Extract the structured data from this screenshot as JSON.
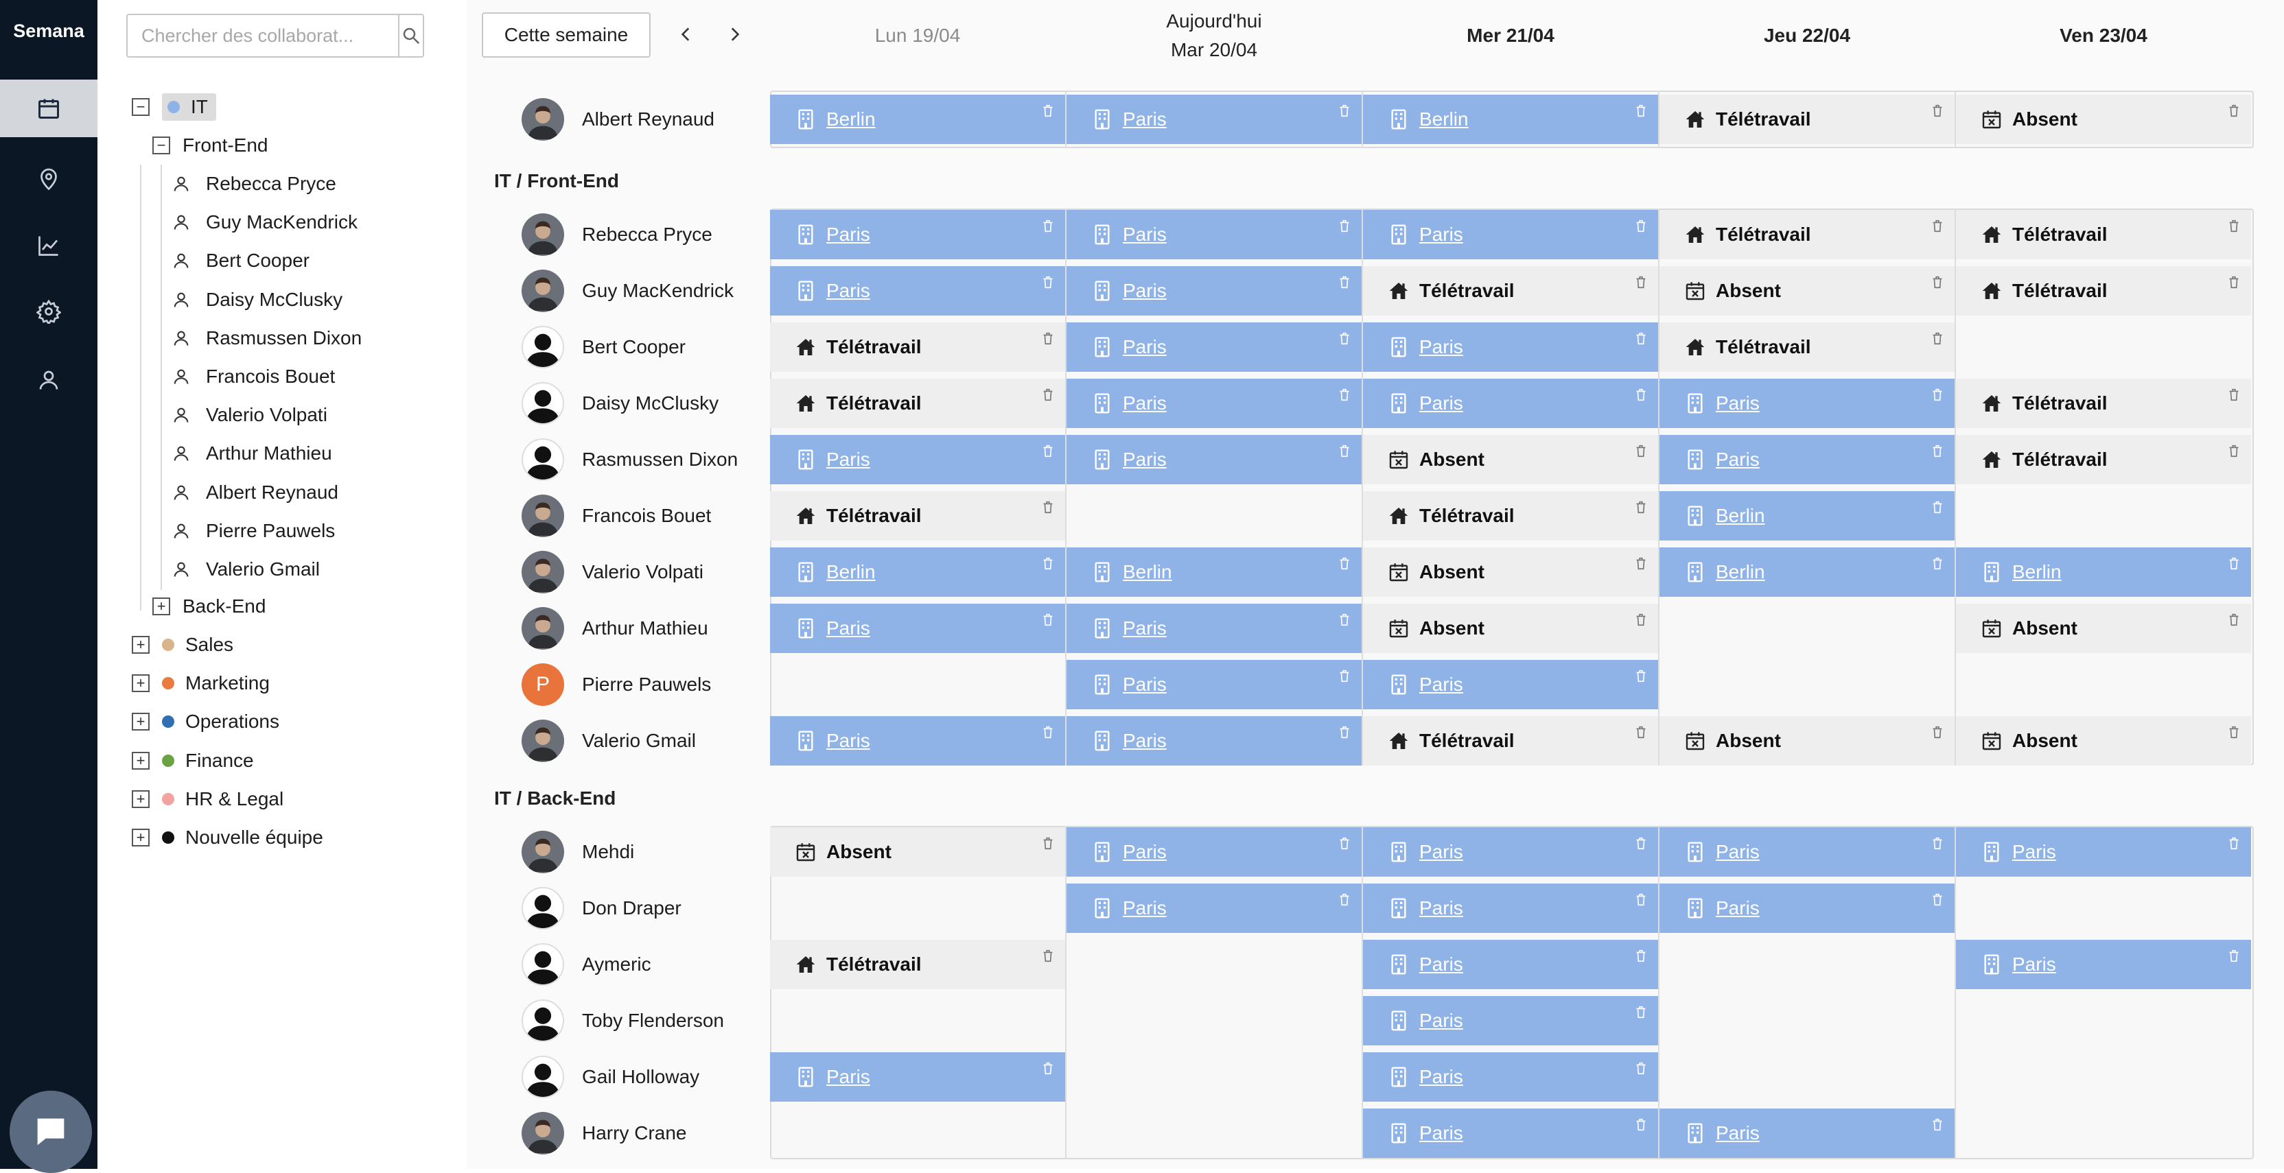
{
  "app": {
    "brand": "Semana"
  },
  "nav": [
    "calendar-icon",
    "map-pin-icon",
    "chart-icon",
    "gear-icon",
    "user-icon"
  ],
  "search": {
    "placeholder": "Chercher des collaborat..."
  },
  "tree": {
    "root": {
      "label": "IT",
      "color": "#8fb3e6"
    },
    "frontend": "Front-End",
    "frontend_members": [
      "Rebecca Pryce",
      "Guy MacKendrick",
      "Bert Cooper",
      "Daisy McClusky",
      "Rasmussen Dixon",
      "Francois Bouet",
      "Valerio Volpati",
      "Arthur Mathieu",
      "Albert Reynaud",
      "Pierre Pauwels",
      "Valerio Gmail"
    ],
    "backend": "Back-End",
    "teams": [
      {
        "label": "Sales",
        "color": "#d9b48a"
      },
      {
        "label": "Marketing",
        "color": "#ea7b3e"
      },
      {
        "label": "Operations",
        "color": "#2f6fb3"
      },
      {
        "label": "Finance",
        "color": "#6aa442"
      },
      {
        "label": "HR & Legal",
        "color": "#f2a3a0"
      },
      {
        "label": "Nouvelle équipe",
        "color": "#111111"
      }
    ]
  },
  "toolbar": {
    "this_week": "Cette semaine"
  },
  "days": [
    {
      "label": "Lun 19/04",
      "state": "past"
    },
    {
      "label": "Aujourd'hui",
      "sub": "Mar 20/04",
      "state": "today"
    },
    {
      "label": "Mer 21/04",
      "state": "future"
    },
    {
      "label": "Jeu 22/04",
      "state": "future"
    },
    {
      "label": "Ven 23/04",
      "state": "future"
    }
  ],
  "colors": {
    "office": "#8fb3e6",
    "remote": "#eeeeee",
    "rail": "#0c1726"
  },
  "groups": [
    {
      "title": "",
      "rows": [
        {
          "name": "Albert Reynaud",
          "avatar": "photo",
          "cells": [
            [
              "office",
              "Berlin"
            ],
            [
              "office",
              "Paris"
            ],
            [
              "office",
              "Berlin"
            ],
            [
              "remote",
              "Télétravail"
            ],
            [
              "absent",
              "Absent"
            ]
          ]
        }
      ]
    },
    {
      "title": "IT / Front-End",
      "rows": [
        {
          "name": "Rebecca Pryce",
          "avatar": "photo",
          "cells": [
            [
              "office",
              "Paris"
            ],
            [
              "office",
              "Paris"
            ],
            [
              "office",
              "Paris"
            ],
            [
              "remote",
              "Télétravail"
            ],
            [
              "remote",
              "Télétravail"
            ]
          ]
        },
        {
          "name": "Guy MacKendrick",
          "avatar": "photo",
          "cells": [
            [
              "office",
              "Paris"
            ],
            [
              "office",
              "Paris"
            ],
            [
              "remote",
              "Télétravail"
            ],
            [
              "absent",
              "Absent"
            ],
            [
              "remote",
              "Télétravail"
            ]
          ]
        },
        {
          "name": "Bert Cooper",
          "avatar": "silhouette",
          "cells": [
            [
              "remote",
              "Télétravail"
            ],
            [
              "office",
              "Paris"
            ],
            [
              "office",
              "Paris"
            ],
            [
              "remote",
              "Télétravail"
            ],
            null
          ]
        },
        {
          "name": "Daisy McClusky",
          "avatar": "silhouette",
          "cells": [
            [
              "remote",
              "Télétravail"
            ],
            [
              "office",
              "Paris"
            ],
            [
              "office",
              "Paris"
            ],
            [
              "office",
              "Paris"
            ],
            [
              "remote",
              "Télétravail"
            ]
          ]
        },
        {
          "name": "Rasmussen Dixon",
          "avatar": "silhouette",
          "cells": [
            [
              "office",
              "Paris"
            ],
            [
              "office",
              "Paris"
            ],
            [
              "absent",
              "Absent"
            ],
            [
              "office",
              "Paris"
            ],
            [
              "remote",
              "Télétravail"
            ]
          ]
        },
        {
          "name": "Francois Bouet",
          "avatar": "photo",
          "cells": [
            [
              "remote",
              "Télétravail"
            ],
            null,
            [
              "remote",
              "Télétravail"
            ],
            [
              "office",
              "Berlin"
            ],
            null
          ]
        },
        {
          "name": "Valerio Volpati",
          "avatar": "photo",
          "cells": [
            [
              "office",
              "Berlin"
            ],
            [
              "office",
              "Berlin"
            ],
            [
              "absent",
              "Absent"
            ],
            [
              "office",
              "Berlin"
            ],
            [
              "office",
              "Berlin"
            ]
          ]
        },
        {
          "name": "Arthur Mathieu",
          "avatar": "photo",
          "cells": [
            [
              "office",
              "Paris"
            ],
            [
              "office",
              "Paris"
            ],
            [
              "absent",
              "Absent"
            ],
            null,
            [
              "absent",
              "Absent"
            ]
          ]
        },
        {
          "name": "Pierre Pauwels",
          "avatar": "letter",
          "initial": "P",
          "cells": [
            null,
            [
              "office",
              "Paris"
            ],
            [
              "office",
              "Paris"
            ],
            null,
            null
          ]
        },
        {
          "name": "Valerio Gmail",
          "avatar": "photo",
          "cells": [
            [
              "office",
              "Paris"
            ],
            [
              "office",
              "Paris"
            ],
            [
              "remote",
              "Télétravail"
            ],
            [
              "absent",
              "Absent"
            ],
            [
              "absent",
              "Absent"
            ]
          ]
        }
      ]
    },
    {
      "title": "IT / Back-End",
      "rows": [
        {
          "name": "Mehdi",
          "avatar": "photo",
          "cells": [
            [
              "absent",
              "Absent"
            ],
            [
              "office",
              "Paris"
            ],
            [
              "office",
              "Paris"
            ],
            [
              "office",
              "Paris"
            ],
            [
              "office",
              "Paris"
            ]
          ]
        },
        {
          "name": "Don Draper",
          "avatar": "silhouette",
          "cells": [
            null,
            [
              "office",
              "Paris"
            ],
            [
              "office",
              "Paris"
            ],
            [
              "office",
              "Paris"
            ],
            null
          ]
        },
        {
          "name": "Aymeric",
          "avatar": "silhouette",
          "cells": [
            [
              "remote",
              "Télétravail"
            ],
            null,
            [
              "office",
              "Paris"
            ],
            null,
            [
              "office",
              "Paris"
            ]
          ]
        },
        {
          "name": "Toby Flenderson",
          "avatar": "silhouette",
          "cells": [
            null,
            null,
            [
              "office",
              "Paris"
            ],
            null,
            null
          ]
        },
        {
          "name": "Gail Holloway",
          "avatar": "silhouette",
          "cells": [
            [
              "office",
              "Paris"
            ],
            null,
            [
              "office",
              "Paris"
            ],
            null,
            null
          ]
        },
        {
          "name": "Harry Crane",
          "avatar": "photo",
          "cells": [
            null,
            null,
            [
              "office",
              "Paris"
            ],
            [
              "office",
              "Paris"
            ],
            null
          ]
        }
      ]
    }
  ]
}
